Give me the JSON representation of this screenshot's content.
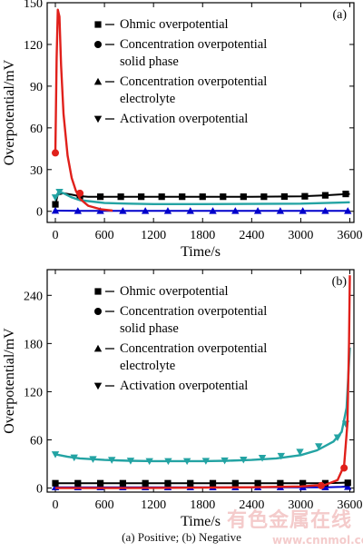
{
  "chart_data": [
    {
      "type": "line",
      "panel_label": "(a)",
      "xlabel": "Time/s",
      "ylabel": "Overpotential/mV",
      "xlim": [
        -100,
        3650
      ],
      "ylim": [
        -8,
        150
      ],
      "x_ticks": [
        0,
        600,
        1200,
        1800,
        2400,
        3000,
        3600
      ],
      "y_ticks": [
        0,
        30,
        60,
        90,
        120,
        150
      ],
      "legend_position": "top-right",
      "series": [
        {
          "name": "Ohmic overpotential",
          "marker": "square",
          "color": "#000000",
          "x": [
            0,
            30,
            100,
            200,
            280,
            400,
            550,
            750,
            1000,
            1200,
            1500,
            1800,
            2100,
            2400,
            2700,
            3000,
            3300,
            3600
          ],
          "y": [
            5,
            12,
            13,
            12,
            11,
            10.5,
            10.5,
            10.5,
            10.5,
            10.5,
            10.5,
            10.5,
            10.5,
            10.5,
            10.6,
            10.8,
            11.5,
            12.5
          ],
          "markers_x": [
            0,
            300,
            550,
            800,
            1050,
            1300,
            1550,
            1800,
            2050,
            2300,
            2550,
            2800,
            3050,
            3300,
            3550
          ],
          "markers_y": [
            5,
            11,
            10.5,
            10.5,
            10.5,
            10.5,
            10.5,
            10.5,
            10.5,
            10.5,
            10.5,
            10.6,
            10.8,
            11.5,
            12.5
          ]
        },
        {
          "name": "Concentration overpotential solid phase",
          "marker": "circle",
          "color": "#e0201b",
          "x": [
            0,
            15,
            30,
            50,
            70,
            100,
            150,
            200,
            250,
            300,
            400,
            550,
            700
          ],
          "y": [
            42,
            110,
            145,
            140,
            105,
            70,
            40,
            24,
            15,
            9,
            4,
            1.5,
            0.5
          ],
          "markers_x": [
            0,
            300
          ],
          "markers_y": [
            42,
            13
          ]
        },
        {
          "name": "Concentration overpotential electrolyte",
          "marker": "triangle-up",
          "color": "#0000cc",
          "x": [
            0,
            300,
            600,
            1200,
            1800,
            2400,
            3000,
            3600
          ],
          "y": [
            0.5,
            0.3,
            0.3,
            0.3,
            0.3,
            0.3,
            0.3,
            0.3
          ],
          "markers_x": [
            0,
            275,
            550,
            825,
            1100,
            1375,
            1650,
            1925,
            2200,
            2475,
            2750,
            3025,
            3300,
            3575
          ],
          "markers_y": [
            0.5,
            0.3,
            0.3,
            0.3,
            0.3,
            0.3,
            0.3,
            0.3,
            0.3,
            0.3,
            0.3,
            0.3,
            0.3,
            0.3
          ]
        },
        {
          "name": "Activation overpotential",
          "marker": "triangle-down",
          "color": "#23a3a3",
          "x": [
            0,
            40,
            100,
            200,
            300,
            450,
            600,
            900,
            1200,
            1800,
            2400,
            3000,
            3600
          ],
          "y": [
            10,
            14,
            13,
            10,
            8,
            7,
            6,
            5.5,
            5.2,
            5.2,
            5.3,
            5.5,
            6.5
          ],
          "markers_x": [
            0,
            50
          ],
          "markers_y": [
            10,
            14
          ]
        }
      ]
    },
    {
      "type": "line",
      "panel_label": "(b)",
      "xlabel": "Time/s",
      "ylabel": "Overpotential/mV",
      "xlim": [
        -100,
        3650
      ],
      "ylim": [
        -5,
        272
      ],
      "x_ticks": [
        0,
        600,
        1200,
        1800,
        2400,
        3000,
        3600
      ],
      "y_ticks": [
        0,
        60,
        120,
        180,
        240
      ],
      "legend_position": "top-right",
      "series": [
        {
          "name": "Ohmic overpotential",
          "marker": "square",
          "color": "#000000",
          "x": [
            0,
            300,
            900,
            1500,
            2100,
            2700,
            3300,
            3500,
            3600
          ],
          "y": [
            6,
            6,
            6,
            6,
            6,
            6,
            6,
            6.5,
            7
          ],
          "markers_x": [
            0,
            275,
            550,
            825,
            1100,
            1375,
            1650,
            1925,
            2200,
            2475,
            2750,
            3025,
            3300,
            3575
          ],
          "markers_y": [
            6,
            6,
            6,
            6,
            6,
            6,
            6,
            6,
            6,
            6,
            6,
            6,
            6,
            6.5
          ]
        },
        {
          "name": "Concentration overpotential solid phase",
          "marker": "circle",
          "color": "#e0201b",
          "x": [
            0,
            600,
            1200,
            1800,
            2400,
            3000,
            3300,
            3450,
            3530,
            3570,
            3590,
            3600
          ],
          "y": [
            0,
            0,
            0.2,
            0.5,
            1,
            2,
            4,
            10,
            28,
            80,
            180,
            265
          ],
          "markers_x": [
            3250,
            3530
          ],
          "markers_y": [
            3,
            25
          ]
        },
        {
          "name": "Concentration overpotential electrolyte",
          "marker": "triangle-up",
          "color": "#0000cc",
          "x": [
            0,
            600,
            1200,
            1800,
            2400,
            3000,
            3300,
            3500,
            3600
          ],
          "y": [
            1,
            1,
            1,
            1,
            1,
            1,
            1,
            1.5,
            2
          ],
          "markers_x": [
            0,
            275,
            550,
            825,
            1100,
            1375,
            1650,
            1925,
            2200,
            2475,
            2750,
            3025,
            3300,
            3575
          ],
          "markers_y": [
            1,
            1,
            1,
            1,
            1,
            1,
            1,
            1,
            1,
            1,
            1,
            1,
            1,
            1.5
          ]
        },
        {
          "name": "Activation overpotential",
          "marker": "triangle-down",
          "color": "#23a3a3",
          "x": [
            0,
            150,
            300,
            600,
            900,
            1200,
            1500,
            1800,
            2100,
            2400,
            2700,
            3000,
            3200,
            3400,
            3500,
            3560,
            3600
          ],
          "y": [
            42,
            39,
            37,
            35,
            34,
            33.5,
            33.5,
            33.5,
            34,
            35,
            37,
            41,
            47,
            58,
            70,
            100,
            175
          ],
          "markers_x": [
            0,
            230,
            460,
            690,
            920,
            1150,
            1380,
            1610,
            1840,
            2070,
            2300,
            2530,
            2760,
            2990,
            3220,
            3450,
            3550
          ],
          "markers_y": [
            42,
            38,
            36,
            35,
            34,
            33.5,
            33.5,
            33.5,
            33.8,
            34.3,
            35.3,
            37.5,
            40,
            45,
            52,
            63,
            80
          ]
        }
      ]
    }
  ],
  "caption": "(a) Positive; (b) Negative",
  "watermark": "有色金属在线",
  "watermark_url": "www.cnnmol.com"
}
